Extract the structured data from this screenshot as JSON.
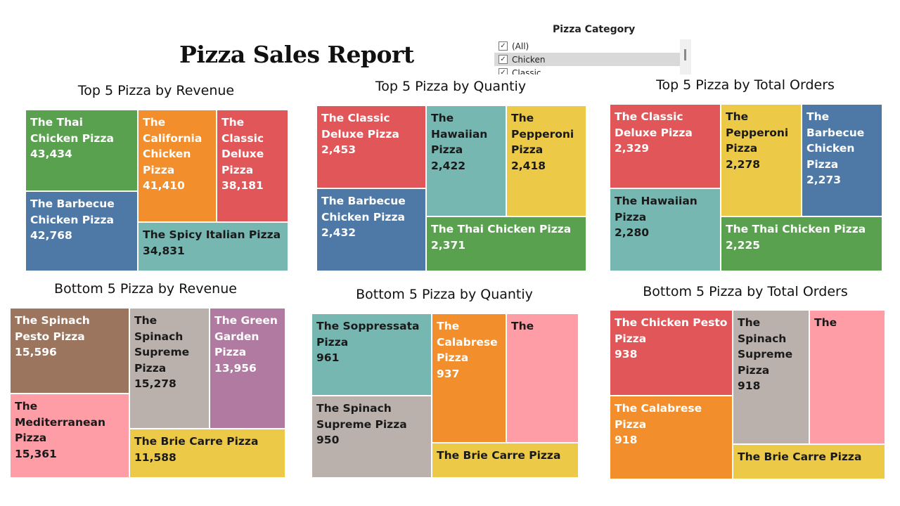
{
  "report": {
    "title": "Pizza Sales Report"
  },
  "filter": {
    "title": "Pizza Category",
    "options": [
      {
        "label": "(All)",
        "checked": true
      },
      {
        "label": "Chicken",
        "checked": true
      },
      {
        "label": "Classic",
        "checked": true
      }
    ]
  },
  "colors": {
    "red": "#E15759",
    "green": "#59A14F",
    "orange": "#F28E2B",
    "blue": "#4E79A7",
    "teal": "#76B7B2",
    "yellow": "#EDC948",
    "brown": "#9C755F",
    "gray": "#BAB0AC",
    "pink": "#FF9DA7",
    "purple": "#B07AA1"
  },
  "chart_data": [
    {
      "type": "treemap",
      "title": "Top 5 Pizza by Revenue",
      "items": [
        {
          "name": "The Thai Chicken Pizza",
          "value": "43,434",
          "color": "green"
        },
        {
          "name": "The Barbecue Chicken Pizza",
          "value": "42,768",
          "color": "blue"
        },
        {
          "name": "The California Chicken Pizza",
          "value": "41,410",
          "color": "orange"
        },
        {
          "name": "The Classic Deluxe Pizza",
          "value": "38,181",
          "color": "red"
        },
        {
          "name": "The Spicy Italian Pizza",
          "value": "34,831",
          "color": "teal"
        }
      ]
    },
    {
      "type": "treemap",
      "title": "Top 5 Pizza by Quantiy",
      "items": [
        {
          "name": "The Classic Deluxe Pizza",
          "value": "2,453",
          "color": "red"
        },
        {
          "name": "The Barbecue Chicken Pizza",
          "value": "2,432",
          "color": "blue"
        },
        {
          "name": "The Hawaiian Pizza",
          "value": "2,422",
          "color": "teal"
        },
        {
          "name": "The Pepperoni Pizza",
          "value": "2,418",
          "color": "yellow"
        },
        {
          "name": "The Thai Chicken Pizza",
          "value": "2,371",
          "color": "green"
        }
      ]
    },
    {
      "type": "treemap",
      "title": "Top 5 Pizza by Total Orders",
      "items": [
        {
          "name": "The Classic Deluxe Pizza",
          "value": "2,329",
          "color": "red"
        },
        {
          "name": "The Hawaiian Pizza",
          "value": "2,280",
          "color": "teal"
        },
        {
          "name": "The Pepperoni Pizza",
          "value": "2,278",
          "color": "yellow"
        },
        {
          "name": "The Barbecue Chicken Pizza",
          "value": "2,273",
          "color": "blue"
        },
        {
          "name": "The Thai Chicken Pizza",
          "value": "2,225",
          "color": "green"
        }
      ]
    },
    {
      "type": "treemap",
      "title": "Bottom 5 Pizza by Revenue",
      "items": [
        {
          "name": "The Spinach Pesto Pizza",
          "value": "15,596",
          "color": "brown"
        },
        {
          "name": "The Mediterranean Pizza",
          "value": "15,361",
          "color": "pink"
        },
        {
          "name": "The Spinach Supreme Pizza",
          "value": "15,278",
          "color": "gray"
        },
        {
          "name": "The Green Garden Pizza",
          "value": "13,956",
          "color": "purple"
        },
        {
          "name": "The Brie Carre Pizza",
          "value": "11,588",
          "color": "yellow"
        }
      ]
    },
    {
      "type": "treemap",
      "title": "Bottom 5 Pizza by Quantiy",
      "items": [
        {
          "name": "The Soppressata Pizza",
          "value": "961",
          "color": "teal"
        },
        {
          "name": "The Spinach Supreme Pizza",
          "value": "950",
          "color": "gray"
        },
        {
          "name": "The Calabrese Pizza",
          "value": "937",
          "color": "orange"
        },
        {
          "name": "The",
          "value": "",
          "color": "pink"
        },
        {
          "name": "The Brie Carre Pizza",
          "value": "",
          "color": "yellow"
        }
      ]
    },
    {
      "type": "treemap",
      "title": "Bottom 5 Pizza by Total Orders",
      "items": [
        {
          "name": "The Chicken Pesto Pizza",
          "value": "938",
          "color": "red"
        },
        {
          "name": "The Calabrese Pizza",
          "value": "918",
          "color": "orange"
        },
        {
          "name": "The Spinach Supreme Pizza",
          "value": "918",
          "color": "gray"
        },
        {
          "name": "The",
          "value": "",
          "color": "pink"
        },
        {
          "name": "The Brie Carre Pizza",
          "value": "",
          "color": "yellow"
        }
      ]
    }
  ]
}
